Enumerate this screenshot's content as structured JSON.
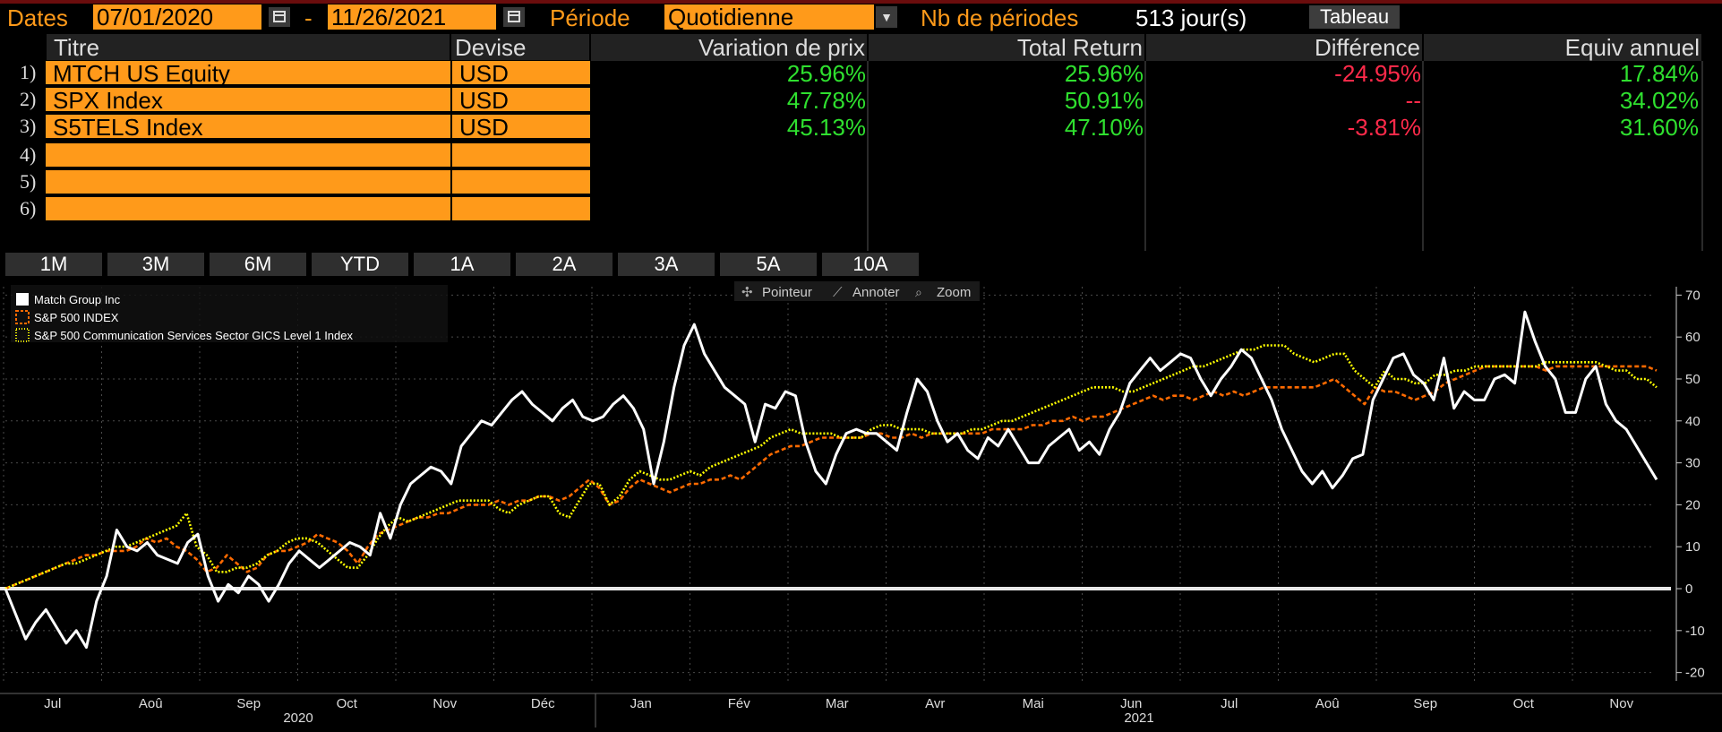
{
  "toolbar": {
    "dates_label": "Dates",
    "start_date": "07/01/2020",
    "dash": "-",
    "end_date": "11/26/2021",
    "period_label": "Période",
    "period_value": "Quotidienne",
    "nb_label": "Nb de périodes",
    "nb_value": "513 jour(s)",
    "tableau_button": "Tableau",
    "calendar_icon": "calendar-icon",
    "dropdown_icon": "chevron-down-icon"
  },
  "table": {
    "headers": [
      "Titre",
      "Devise",
      "Variation de prix",
      "Total Return",
      "Différence",
      "Equiv annuel"
    ],
    "rows": [
      {
        "num": "1)",
        "title": "MTCH US Equity",
        "currency": "USD",
        "price_change": "25.96%",
        "total_return": "25.96%",
        "difference": "-24.95%",
        "annual": "17.84%"
      },
      {
        "num": "2)",
        "title": "SPX Index",
        "currency": "USD",
        "price_change": "47.78%",
        "total_return": "50.91%",
        "difference": "--",
        "annual": "34.02%"
      },
      {
        "num": "3)",
        "title": "S5TELS Index",
        "currency": "USD",
        "price_change": "45.13%",
        "total_return": "47.10%",
        "difference": "-3.81%",
        "annual": "31.60%"
      },
      {
        "num": "4)",
        "title": "",
        "currency": ""
      },
      {
        "num": "5)",
        "title": "",
        "currency": ""
      },
      {
        "num": "6)",
        "title": "",
        "currency": ""
      }
    ],
    "colors": {
      "positive": "#2fe02f",
      "negative": "#ff2a4a",
      "neutral": "#ff2a4a"
    }
  },
  "periods": [
    "1M",
    "3M",
    "6M",
    "YTD",
    "1A",
    "2A",
    "3A",
    "5A",
    "10A"
  ],
  "chart_tools": {
    "pointer": "Pointeur",
    "annotate": "Annoter",
    "zoom": "Zoom",
    "pointer_icon": "crosshair-icon",
    "annotate_icon": "pencil-icon",
    "zoom_icon": "search-icon"
  },
  "chart_data": {
    "type": "line",
    "legend_position": "top-left",
    "grid": true,
    "ylim": [
      -22,
      72
    ],
    "yticks": [
      70,
      60,
      50,
      40,
      30,
      20,
      10,
      0,
      -10,
      -20
    ],
    "months": [
      "Jul",
      "Aoû",
      "Sep",
      "Oct",
      "Nov",
      "Déc",
      "Jan",
      "Fév",
      "Mar",
      "Avr",
      "Mai",
      "Jun",
      "Jul",
      "Aoû",
      "Sep",
      "Oct",
      "Nov"
    ],
    "years": [
      "2020",
      "2021"
    ],
    "zero_line": 0,
    "series": [
      {
        "name": "Match Group Inc",
        "color": "#ffffff",
        "style": "solid",
        "values": [
          0,
          -6,
          -12,
          -8,
          -5,
          -9,
          -13,
          -10,
          -14,
          -3,
          3,
          14,
          10,
          9,
          11,
          8,
          7,
          6,
          11,
          13,
          3,
          -3,
          1,
          -1,
          3,
          1,
          -3,
          1,
          6,
          9,
          7,
          5,
          7,
          9,
          11,
          10,
          8,
          18,
          12,
          20,
          25,
          27,
          29,
          28,
          25,
          34,
          37,
          40,
          39,
          42,
          45,
          47,
          44,
          42,
          40,
          43,
          45,
          41,
          40,
          41,
          44,
          46,
          43,
          38,
          25,
          35,
          48,
          58,
          63,
          56,
          52,
          48,
          46,
          44,
          35,
          44,
          43,
          47,
          46,
          35,
          28,
          25,
          32,
          37,
          38,
          37,
          37,
          35,
          33,
          42,
          50,
          47,
          40,
          35,
          37,
          33,
          31,
          36,
          34,
          38,
          34,
          30,
          30,
          34,
          36,
          38,
          33,
          35,
          32,
          38,
          42,
          49,
          52,
          55,
          52,
          54,
          56,
          55,
          50,
          46,
          50,
          53,
          57,
          55,
          50,
          45,
          38,
          33,
          28,
          25,
          28,
          24,
          27,
          31,
          32,
          45,
          50,
          55,
          56,
          51,
          49,
          45,
          55,
          43,
          47,
          45,
          45,
          50,
          51,
          49,
          66,
          59,
          53,
          50,
          42,
          42,
          50,
          53,
          44,
          40,
          38,
          34,
          30,
          26
        ]
      },
      {
        "name": "S&P 500 INDEX",
        "color": "#ff6a00",
        "style": "dashed",
        "values": [
          0,
          1,
          2,
          3,
          4,
          5,
          6,
          7,
          8,
          8,
          9,
          9,
          9,
          10,
          12,
          11,
          12,
          10,
          9,
          7,
          4,
          5,
          8,
          6,
          4,
          5,
          8,
          9,
          9,
          10,
          11,
          13,
          12,
          11,
          9,
          6,
          10,
          13,
          14,
          15,
          16,
          17,
          17,
          18,
          18,
          19,
          20,
          20,
          20,
          21,
          20,
          21,
          21,
          22,
          22,
          21,
          22,
          24,
          26,
          24,
          20,
          21,
          24,
          26,
          25,
          24,
          23,
          24,
          25,
          25,
          26,
          26,
          27,
          26,
          28,
          30,
          32,
          33,
          34,
          34,
          35,
          36,
          36,
          36,
          36,
          36,
          37,
          37,
          36,
          36,
          37,
          36,
          37,
          37,
          37,
          37,
          37,
          37,
          38,
          38,
          38,
          38,
          39,
          39,
          40,
          40,
          41,
          40,
          41,
          41,
          42,
          43,
          44,
          45,
          46,
          45,
          46,
          46,
          45,
          46,
          47,
          46,
          47,
          46,
          47,
          48,
          48,
          48,
          48,
          48,
          48,
          49,
          50,
          48,
          46,
          44,
          48,
          47,
          47,
          46,
          45,
          46,
          47,
          49,
          50,
          51,
          52,
          53,
          53,
          53,
          53,
          53,
          53,
          52,
          53,
          53,
          53,
          53,
          53,
          53,
          53,
          53,
          53,
          53,
          52
        ]
      },
      {
        "name": "S&P 500 Communication Services Sector GICS Level 1 Index",
        "color": "#ffff00",
        "style": "dotted",
        "values": [
          0,
          1,
          2,
          3,
          4,
          5,
          6,
          6,
          7,
          8,
          9,
          10,
          10,
          11,
          12,
          13,
          14,
          15,
          18,
          10,
          8,
          4,
          4,
          5,
          5,
          6,
          8,
          9,
          11,
          12,
          12,
          11,
          9,
          7,
          5,
          5,
          8,
          12,
          15,
          17,
          16,
          17,
          18,
          19,
          20,
          21,
          21,
          21,
          21,
          19,
          18,
          20,
          21,
          22,
          22,
          18,
          17,
          21,
          25,
          25,
          20,
          22,
          26,
          28,
          27,
          26,
          26,
          27,
          28,
          27,
          29,
          30,
          31,
          32,
          33,
          34,
          36,
          37,
          38,
          37,
          37,
          37,
          37,
          36,
          36,
          36,
          38,
          39,
          39,
          38,
          38,
          38,
          37,
          37,
          37,
          37,
          38,
          38,
          39,
          40,
          40,
          41,
          42,
          43,
          44,
          45,
          46,
          47,
          48,
          48,
          48,
          47,
          47,
          48,
          49,
          50,
          51,
          52,
          53,
          53,
          54,
          55,
          56,
          57,
          57,
          58,
          58,
          58,
          56,
          55,
          54,
          55,
          56,
          56,
          52,
          50,
          48,
          52,
          50,
          50,
          49,
          49,
          51,
          51,
          52,
          52,
          53,
          53,
          53,
          53,
          53,
          53,
          53,
          54,
          54,
          54,
          54,
          54,
          54,
          53,
          52,
          52,
          50,
          50,
          48
        ]
      }
    ]
  }
}
